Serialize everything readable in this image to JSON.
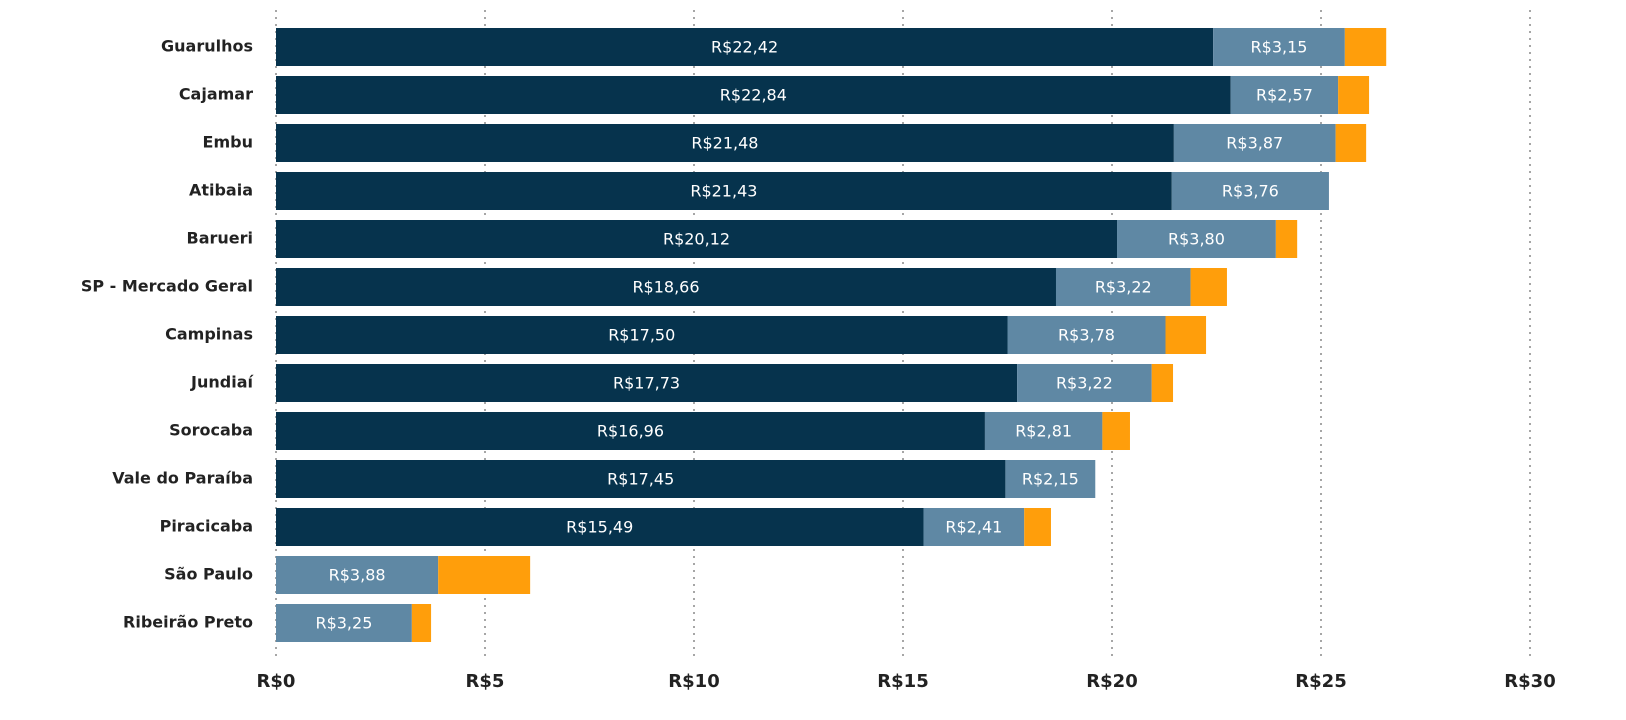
{
  "chart_data": {
    "type": "stacked-bar",
    "categories": [
      "Guarulhos",
      "Cajamar",
      "Embu",
      "Atibaia",
      "Barueri",
      "SP - Mercado Geral",
      "Campinas",
      "Jundiaí",
      "Sorocaba",
      "Vale do Paraíba",
      "Piracicaba",
      "São Paulo",
      "Ribeirão Preto"
    ],
    "series": [
      {
        "color": "#06334d",
        "values": [
          22.42,
          22.84,
          21.48,
          21.43,
          20.12,
          18.66,
          17.5,
          17.73,
          16.96,
          17.45,
          15.49,
          null,
          null
        ],
        "value_labels": [
          "R$22,42",
          "R$22,84",
          "R$21,48",
          "R$21,43",
          "R$20,12",
          "R$18,66",
          "R$17,50",
          "R$17,73",
          "R$16,96",
          "R$17,45",
          "R$15,49",
          null,
          null
        ]
      },
      {
        "color": "#5f88a4",
        "values": [
          3.15,
          2.57,
          3.87,
          3.76,
          3.8,
          3.22,
          3.78,
          3.22,
          2.81,
          2.15,
          2.41,
          3.88,
          3.25
        ],
        "value_labels": [
          "R$3,15",
          "R$2,57",
          "R$3,87",
          "R$3,76",
          "R$3,80",
          "R$3,22",
          "R$3,78",
          "R$3,22",
          "R$2,81",
          "R$2,15",
          "R$2,41",
          "R$3,88",
          "R$3,25"
        ]
      },
      {
        "color": "#ff9e0b",
        "values": [
          0.99,
          0.74,
          0.73,
          null,
          0.51,
          0.87,
          0.97,
          0.51,
          0.66,
          null,
          0.64,
          2.2,
          0.46
        ]
      }
    ],
    "xlim": [
      0,
      30
    ],
    "xticks": [
      {
        "value": 0,
        "label": "R$0"
      },
      {
        "value": 5,
        "label": "R$5"
      },
      {
        "value": 10,
        "label": "R$10"
      },
      {
        "value": 15,
        "label": "R$15"
      },
      {
        "value": 20,
        "label": "R$20"
      },
      {
        "value": 25,
        "label": "R$25"
      },
      {
        "value": 30,
        "label": "R$30"
      }
    ],
    "grid": true
  }
}
